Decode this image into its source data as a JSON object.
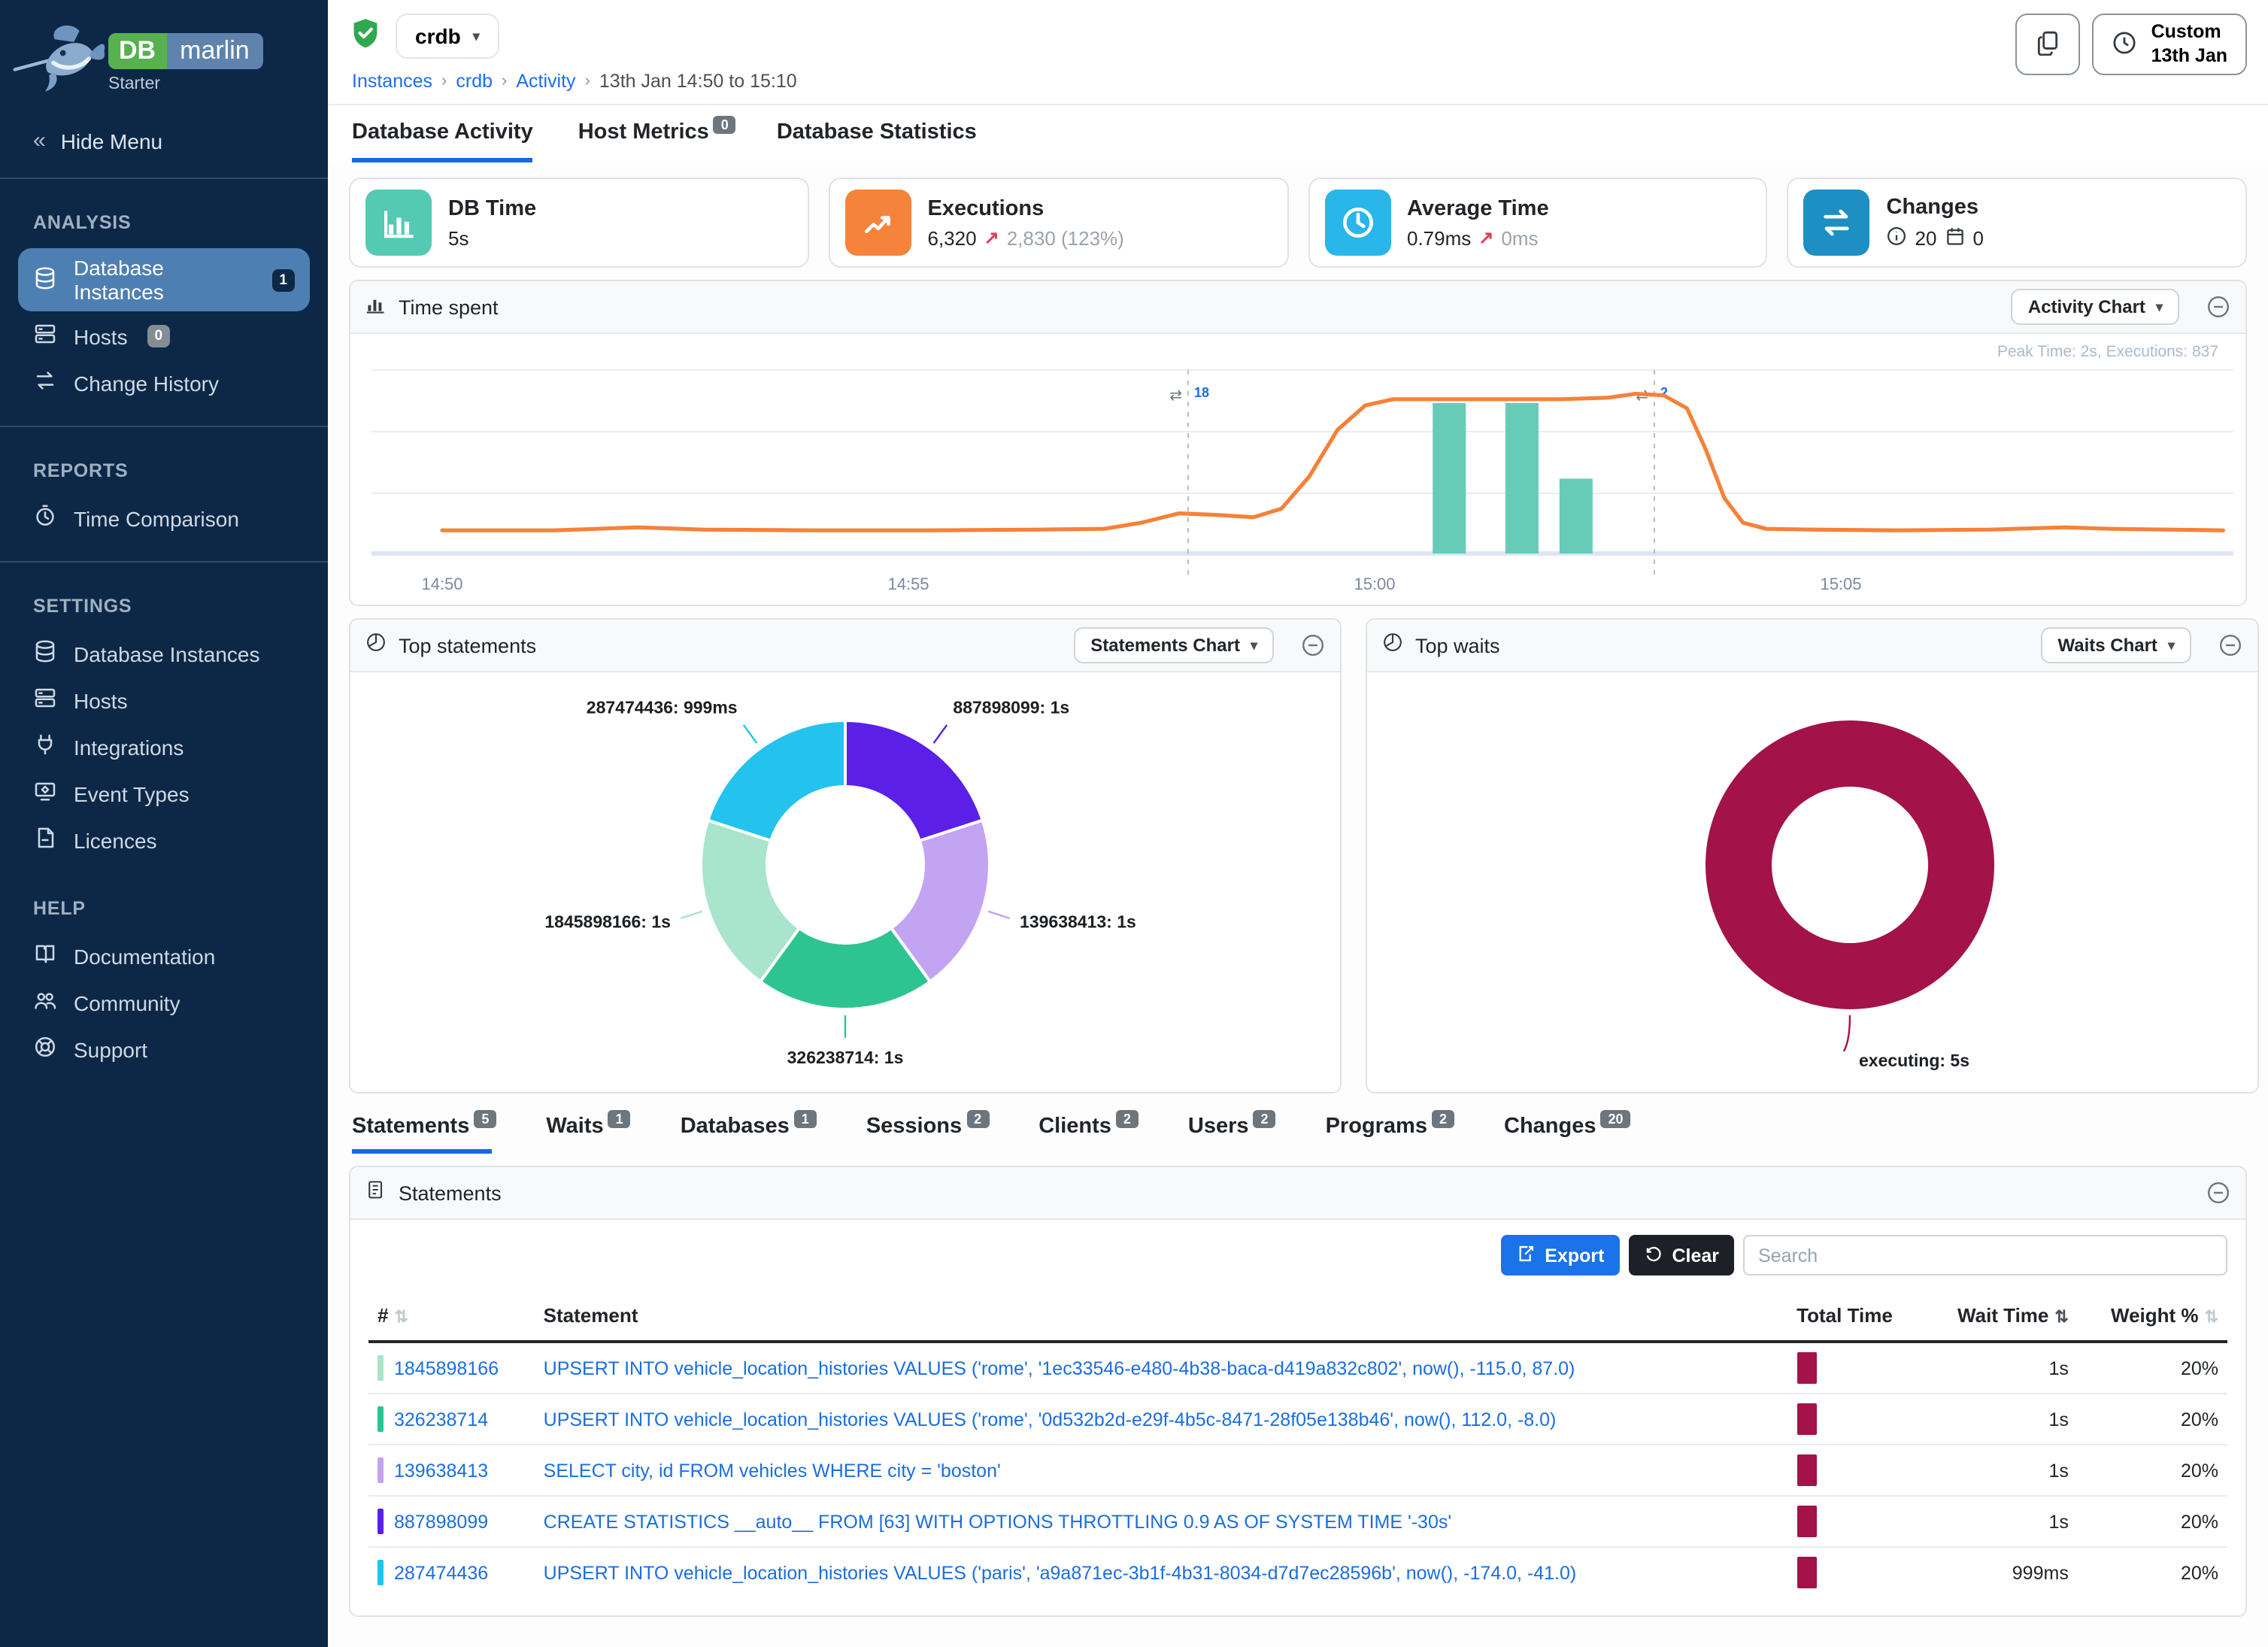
{
  "sidebar": {
    "logo": {
      "db": "DB",
      "marlin": "marlin",
      "plan": "Starter"
    },
    "hide_menu": "Hide Menu",
    "sections": [
      {
        "title": "ANALYSIS",
        "divider_after": true,
        "items": [
          {
            "label": "Database Instances",
            "icon": "database",
            "badge": "1",
            "active": true
          },
          {
            "label": "Hosts",
            "icon": "server",
            "badge": "0",
            "active": false
          },
          {
            "label": "Change History",
            "icon": "swap",
            "active": false
          }
        ]
      },
      {
        "title": "REPORTS",
        "divider_after": true,
        "items": [
          {
            "label": "Time Comparison",
            "icon": "clock",
            "active": false
          }
        ]
      },
      {
        "title": "SETTINGS",
        "divider_after": false,
        "items": [
          {
            "label": "Database Instances",
            "icon": "database",
            "active": false
          },
          {
            "label": "Hosts",
            "icon": "server",
            "active": false
          },
          {
            "label": "Integrations",
            "icon": "plug",
            "active": false
          },
          {
            "label": "Event Types",
            "icon": "events",
            "active": false
          },
          {
            "label": "Licences",
            "icon": "licence",
            "active": false
          }
        ]
      },
      {
        "title": "HELP",
        "divider_after": false,
        "items": [
          {
            "label": "Documentation",
            "icon": "docs",
            "active": false
          },
          {
            "label": "Community",
            "icon": "people",
            "active": false
          },
          {
            "label": "Support",
            "icon": "support",
            "active": false
          }
        ]
      }
    ]
  },
  "header": {
    "instance": "crdb",
    "breadcrumb": [
      {
        "label": "Instances",
        "link": true
      },
      {
        "label": "crdb",
        "link": true
      },
      {
        "label": "Activity",
        "link": true
      },
      {
        "label": "13th Jan 14:50 to 15:10",
        "link": false
      }
    ],
    "time_button": {
      "line1": "Custom",
      "line2": "13th Jan"
    }
  },
  "main_tabs": [
    {
      "label": "Database Activity",
      "active": true
    },
    {
      "label": "Host Metrics",
      "badge": "0",
      "active": false
    },
    {
      "label": "Database Statistics",
      "active": false
    }
  ],
  "kpis": [
    {
      "title": "DB Time",
      "icon": "bar-chart",
      "color": "#54cab3",
      "value": "5s"
    },
    {
      "title": "Executions",
      "icon": "line-chart",
      "color": "#f6833c",
      "value": "6,320",
      "delta": "2,830 (123%)"
    },
    {
      "title": "Average Time",
      "icon": "clock",
      "color": "#29b6ea",
      "value": "0.79ms",
      "delta": "0ms"
    },
    {
      "title": "Changes",
      "icon": "swap",
      "color": "#1d8fc2",
      "info_count": "20",
      "calendar_count": "0"
    }
  ],
  "panels": {
    "time_spent": {
      "title": "Time spent",
      "button": "Activity Chart",
      "peak": "Peak Time: 2s, Executions: 837"
    },
    "top_statements": {
      "title": "Top statements",
      "button": "Statements Chart"
    },
    "top_waits": {
      "title": "Top waits",
      "button": "Waits Chart"
    },
    "statements": {
      "title": "Statements",
      "export": "Export",
      "clear": "Clear",
      "search_placeholder": "Search"
    }
  },
  "chart_data": [
    {
      "id": "time_spent",
      "type": "line",
      "title": "Time spent",
      "x_axis": {
        "unit": "time of day",
        "ticks": [
          "14:50",
          "14:55",
          "15:00",
          "15:05"
        ],
        "tick_minutes": [
          0,
          5,
          10,
          15
        ],
        "range_minutes": [
          0,
          19.3
        ]
      },
      "y_axis": {
        "unit": "seconds",
        "range": [
          0,
          2.3
        ],
        "grid": true
      },
      "annotation": "Peak Time: 2s, Executions: 837",
      "legend": "none",
      "series": [
        {
          "name": "DB Time (s)",
          "type": "line",
          "color": "#f5813a",
          "points": [
            [
              0,
              0.3
            ],
            [
              1.2,
              0.3
            ],
            [
              2.1,
              0.34
            ],
            [
              2.8,
              0.31
            ],
            [
              4,
              0.3
            ],
            [
              5.2,
              0.3
            ],
            [
              6.4,
              0.31
            ],
            [
              7.1,
              0.32
            ],
            [
              7.5,
              0.4
            ],
            [
              7.9,
              0.52
            ],
            [
              8.3,
              0.5
            ],
            [
              8.7,
              0.47
            ],
            [
              9.0,
              0.58
            ],
            [
              9.3,
              1.0
            ],
            [
              9.6,
              1.6
            ],
            [
              9.9,
              1.92
            ],
            [
              10.2,
              2.0
            ],
            [
              10.8,
              2.0
            ],
            [
              11.4,
              2.0
            ],
            [
              12.0,
              2.0
            ],
            [
              12.5,
              2.02
            ],
            [
              12.8,
              2.07
            ],
            [
              13.1,
              2.05
            ],
            [
              13.35,
              1.88
            ],
            [
              13.55,
              1.35
            ],
            [
              13.75,
              0.72
            ],
            [
              13.95,
              0.4
            ],
            [
              14.2,
              0.32
            ],
            [
              14.7,
              0.31
            ],
            [
              15.6,
              0.3
            ],
            [
              16.6,
              0.31
            ],
            [
              17.4,
              0.34
            ],
            [
              17.9,
              0.32
            ],
            [
              18.5,
              0.31
            ],
            [
              19.1,
              0.3
            ]
          ]
        },
        {
          "name": "Executions (normalized to time axis, peak 837)",
          "type": "bar",
          "color": "#66ccb8",
          "points": [
            [
              10.8,
              1.95
            ],
            [
              11.58,
              1.95
            ],
            [
              12.16,
              0.97
            ]
          ],
          "bar_width_minutes": 0.35
        }
      ],
      "events": [
        {
          "minute": 8.0,
          "count": "18",
          "icon": "change-arrows"
        },
        {
          "minute": 13.0,
          "count": "2",
          "icon": "change-arrows"
        }
      ]
    },
    {
      "id": "top_statements",
      "type": "pie",
      "donut": true,
      "title": "Top statements",
      "slices": [
        {
          "label": "887898099",
          "value_text": "1s",
          "fraction": 0.2,
          "color": "#5b1fe8"
        },
        {
          "label": "139638413",
          "value_text": "1s",
          "fraction": 0.2,
          "color": "#c3a4f3"
        },
        {
          "label": "326238714",
          "value_text": "1s",
          "fraction": 0.2,
          "color": "#2ec492"
        },
        {
          "label": "1845898166",
          "value_text": "1s",
          "fraction": 0.2,
          "color": "#a9e4cd"
        },
        {
          "label": "287474436",
          "value_text": "999ms",
          "fraction": 0.2,
          "color": "#23c3ee"
        }
      ]
    },
    {
      "id": "top_waits",
      "type": "pie",
      "donut": true,
      "title": "Top waits",
      "slices": [
        {
          "label": "executing",
          "value_text": "5s",
          "fraction": 1.0,
          "color": "#a31248"
        }
      ]
    }
  ],
  "detail_tabs": [
    {
      "label": "Statements",
      "badge": "5",
      "active": true
    },
    {
      "label": "Waits",
      "badge": "1",
      "active": false
    },
    {
      "label": "Databases",
      "badge": "1",
      "active": false
    },
    {
      "label": "Sessions",
      "badge": "2",
      "active": false
    },
    {
      "label": "Clients",
      "badge": "2",
      "active": false
    },
    {
      "label": "Users",
      "badge": "2",
      "active": false
    },
    {
      "label": "Programs",
      "badge": "2",
      "active": false
    },
    {
      "label": "Changes",
      "badge": "20",
      "active": false
    }
  ],
  "table": {
    "columns": [
      {
        "label": "#",
        "sortable": true,
        "sort_active": false,
        "align": "left"
      },
      {
        "label": "Statement",
        "sortable": false,
        "align": "left"
      },
      {
        "label": "Total Time",
        "sortable": false,
        "align": "left"
      },
      {
        "label": "Wait Time",
        "sortable": true,
        "sort_active": true,
        "align": "right"
      },
      {
        "label": "Weight %",
        "sortable": true,
        "sort_active": false,
        "align": "right"
      }
    ],
    "rows": [
      {
        "id": "1845898166",
        "color": "#a9e4cd",
        "statement": "UPSERT INTO vehicle_location_histories VALUES ('rome', '1ec33546-e480-4b38-baca-d419a832c802', now(), -115.0, 87.0)",
        "total_time_bar": "#a31248",
        "wait_time": "1s",
        "weight": "20%"
      },
      {
        "id": "326238714",
        "color": "#2ec492",
        "statement": "UPSERT INTO vehicle_location_histories VALUES ('rome', '0d532b2d-e29f-4b5c-8471-28f05e138b46', now(), 112.0, -8.0)",
        "total_time_bar": "#a31248",
        "wait_time": "1s",
        "weight": "20%"
      },
      {
        "id": "139638413",
        "color": "#c3a4f3",
        "statement": "SELECT city, id FROM vehicles WHERE city = 'boston'",
        "total_time_bar": "#a31248",
        "wait_time": "1s",
        "weight": "20%"
      },
      {
        "id": "887898099",
        "color": "#5b1fe8",
        "statement": "CREATE STATISTICS __auto__ FROM [63] WITH OPTIONS THROTTLING 0.9 AS OF SYSTEM TIME '-30s'",
        "total_time_bar": "#a31248",
        "wait_time": "1s",
        "weight": "20%"
      },
      {
        "id": "287474436",
        "color": "#23c3ee",
        "statement": "UPSERT INTO vehicle_location_histories VALUES ('paris', 'a9a871ec-3b1f-4b31-8034-d7d7ec28596b', now(), -174.0, -41.0)",
        "total_time_bar": "#a31248",
        "wait_time": "999ms",
        "weight": "20%"
      }
    ]
  }
}
